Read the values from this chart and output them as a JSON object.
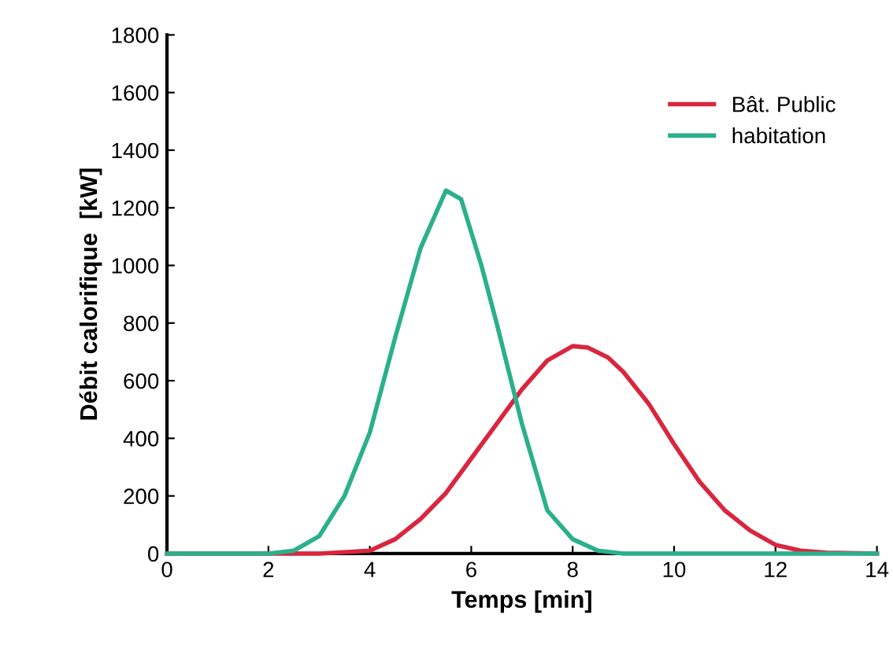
{
  "chart_data": {
    "type": "line",
    "xlabel": "Temps [min]",
    "ylabel": "Débit calorifique  [kW]",
    "xlim": [
      0,
      14
    ],
    "xticks": [
      0,
      2,
      4,
      6,
      8,
      10,
      12,
      14
    ],
    "ylim": [
      0,
      1800
    ],
    "yticks": [
      0,
      200,
      400,
      600,
      800,
      1000,
      1200,
      1400,
      1600,
      1800
    ],
    "grid": false,
    "legend": "top right",
    "marker": "none",
    "line_style": "solid",
    "series": [
      {
        "name": "Bât. Public",
        "color": "#d9263f",
        "x": [
          0,
          2,
          3,
          4,
          4.5,
          5,
          5.5,
          6,
          6.5,
          7,
          7.5,
          8,
          8.3,
          8.7,
          9,
          9.5,
          10,
          10.5,
          11,
          11.5,
          12,
          12.5,
          13,
          14
        ],
        "values": [
          0,
          0,
          0,
          10,
          50,
          120,
          210,
          330,
          450,
          570,
          670,
          720,
          715,
          680,
          630,
          520,
          380,
          250,
          150,
          80,
          30,
          10,
          3,
          0
        ]
      },
      {
        "name": "habitation",
        "color": "#2bb08c",
        "x": [
          0,
          2,
          2.5,
          3,
          3.5,
          4,
          4.5,
          5,
          5.5,
          5.8,
          6.2,
          6.5,
          7,
          7.5,
          8,
          8.5,
          9,
          14
        ],
        "values": [
          0,
          0,
          10,
          60,
          200,
          420,
          750,
          1060,
          1260,
          1230,
          1000,
          800,
          450,
          150,
          50,
          10,
          0,
          0
        ]
      }
    ]
  }
}
